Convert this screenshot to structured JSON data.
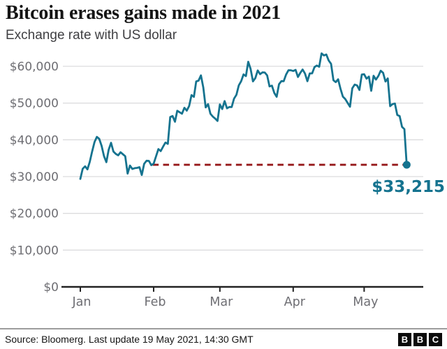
{
  "header": {
    "title": "Bitcoin erases gains made in 2021",
    "subtitle": "Exchange rate with US dollar"
  },
  "chart_data": {
    "type": "line",
    "title": "Bitcoin erases gains made in 2021",
    "subtitle": "Exchange rate with US dollar",
    "series_name": "Bitcoin to US dollar exchange rate",
    "x_start": "1 Jan 2021",
    "x_end": "19 May 2021, 14:30 GMT",
    "frequency": "daily",
    "grid": "horizontal",
    "legend": "none",
    "ylim": [
      0,
      65000
    ],
    "line_color": "#15738F",
    "y_ticks": [
      {
        "value": 60000,
        "label": "$60,000"
      },
      {
        "value": 50000,
        "label": "$50,000"
      },
      {
        "value": 40000,
        "label": "$40,000"
      },
      {
        "value": 30000,
        "label": "$30,000"
      },
      {
        "value": 20000,
        "label": "$20,000"
      },
      {
        "value": 10000,
        "label": "$10,000"
      },
      {
        "value": 0,
        "label": "$0"
      }
    ],
    "x_ticks": [
      {
        "label": "Jan",
        "day_index": 0
      },
      {
        "label": "Feb",
        "day_index": 31
      },
      {
        "label": "Mar",
        "day_index": 59
      },
      {
        "label": "Apr",
        "day_index": 90
      },
      {
        "label": "May",
        "day_index": 120
      }
    ],
    "annotation": {
      "label": "$33,215",
      "value": 33215,
      "dashed_line_color": "#96181A",
      "from_day_index": 30.6,
      "to_day_index": 138
    },
    "values": [
      29374,
      32127,
      32782,
      31971,
      33992,
      36824,
      39371,
      40797,
      40254,
      38356,
      35566,
      33922,
      37316,
      39187,
      36825,
      36178,
      35791,
      36630,
      36069,
      35547,
      30825,
      33005,
      32067,
      32289,
      32366,
      32569,
      30432,
      33466,
      34316,
      34269,
      33114,
      33537,
      35510,
      37472,
      36926,
      38144,
      39266,
      38903,
      46196,
      46481,
      44918,
      47909,
      47504,
      47105,
      48717,
      47945,
      49199,
      52149,
      51679,
      55888,
      56099,
      57539,
      54207,
      48824,
      49705,
      47093,
      46339,
      45800,
      45137,
      49631,
      48378,
      50538,
      48561,
      48927,
      48912,
      51206,
      52246,
      54824,
      55963,
      57805,
      57332,
      61243,
      59302,
      55907,
      56804,
      58870,
      57858,
      58346,
      58313,
      57523,
      54529,
      54738,
      52774,
      51704,
      55137,
      55973,
      55950,
      57750,
      58917,
      58919,
      58726,
      59031,
      57094,
      58192,
      59124,
      58019,
      55958,
      58079,
      58083,
      59793,
      60204,
      59893,
      63503,
      62971,
      63216,
      61572,
      60683,
      56216,
      55681,
      56473,
      53906,
      51762,
      51093,
      50050,
      49004,
      54021,
      55033,
      54824,
      53555,
      57750,
      57828,
      56631,
      57200,
      53333,
      57424,
      56396,
      57352,
      58803,
      58232,
      55859,
      56704,
      49150,
      49716,
      49880,
      46760,
      46456,
      43538,
      42909,
      33215
    ]
  },
  "footer": {
    "source": "Source: Bloomerg. Last update 19 May 2021, 14:30 GMT",
    "logo_blocks": [
      "B",
      "B",
      "C"
    ]
  }
}
